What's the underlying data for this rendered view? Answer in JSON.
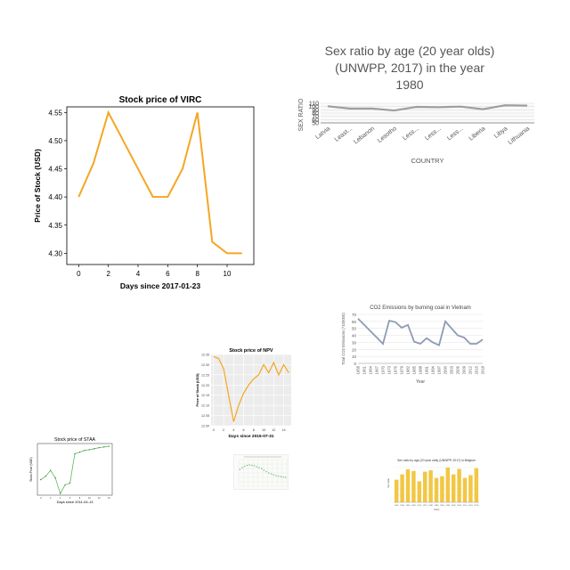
{
  "chart_data": [
    {
      "id": "c1",
      "type": "line",
      "title": "Stock price of VIRC",
      "xlabel": "Days since 2017-01-23",
      "ylabel": "Price of Stock (USD)",
      "x": [
        0,
        1,
        2,
        3,
        4,
        5,
        6,
        7,
        8,
        9,
        10,
        11
      ],
      "series": [
        {
          "values": [
            4.4,
            4.46,
            4.55,
            4.5,
            4.45,
            4.4,
            4.4,
            4.45,
            4.55,
            4.32,
            4.3,
            4.3
          ]
        }
      ],
      "xlim": [
        -0.8,
        11.8
      ],
      "ylim": [
        4.28,
        4.56
      ],
      "xticks": [
        0,
        2,
        4,
        6,
        8,
        10
      ],
      "yticks": [
        4.3,
        4.35,
        4.4,
        4.45,
        4.5,
        4.55
      ],
      "color": "#f5a623",
      "grid": false
    },
    {
      "id": "c2",
      "type": "line",
      "title_lines": [
        "Sex ratio by age (20 year olds)",
        "(UNWPP, 2017) in the year",
        "1980"
      ],
      "xlabel": "COUNTRY",
      "ylabel": "SEX RATIO",
      "categories": [
        "Latvia",
        "Least...",
        "Lebanon",
        "Lesotho",
        "Less...",
        "Less...",
        "Less...",
        "Liberia",
        "Libya",
        "Lithuania"
      ],
      "series": [
        {
          "values": [
            101,
            94,
            94,
            88,
            99,
            98,
            100,
            92,
            104,
            103
          ]
        }
      ],
      "ylim": [
        50,
        110
      ],
      "yticks": [
        "50",
        "60",
        "70",
        "80",
        "90",
        "100",
        "110"
      ],
      "color": "#9e9e9e",
      "grid": true
    },
    {
      "id": "c3",
      "type": "line",
      "title": "CO2 Emissions by burning coal in Vietnam",
      "xlabel": "Year",
      "ylabel": "Total CO2 Emissions (*100000)",
      "x": [
        1960,
        1963,
        1966,
        1969,
        1972,
        1975,
        1978,
        1981,
        1984,
        1987,
        1990,
        1993,
        1996,
        1999,
        2002,
        2005,
        2008,
        2011,
        2014,
        2017
      ],
      "series": [
        {
          "values": [
            64,
            55,
            46,
            37,
            28,
            61,
            59,
            51,
            55,
            31,
            28,
            36,
            30,
            26,
            60,
            50,
            40,
            37,
            28,
            28
          ]
        }
      ],
      "extra_last": 34,
      "ylim": [
        0,
        70
      ],
      "yticks": [
        0,
        10,
        20,
        30,
        40,
        50,
        60,
        70
      ],
      "xtick_labels": [
        "1958",
        "1961",
        "1964",
        "1967",
        "1970",
        "1973",
        "1976",
        "1979",
        "1982",
        "1985",
        "1988",
        "1991",
        "1994",
        "1997",
        "2000",
        "2003",
        "2006",
        "2009",
        "2012",
        "2015",
        "2018"
      ],
      "color": "#8e9bb5",
      "grid": true
    },
    {
      "id": "c4",
      "type": "line",
      "title": "Stock price of NPV",
      "xlabel": "Days since 2015-07-31",
      "ylabel": "Price of Stock (USD)",
      "x": [
        0,
        1,
        2,
        3,
        4,
        5,
        6,
        7,
        8,
        9,
        10,
        11,
        12,
        13,
        14,
        15
      ],
      "series": [
        {
          "values": [
            12.34,
            12.33,
            12.28,
            12.15,
            12.02,
            12.1,
            12.16,
            12.2,
            12.23,
            12.25,
            12.3,
            12.26,
            12.31,
            12.25,
            12.3,
            12.26
          ]
        }
      ],
      "ylim": [
        12.0,
        12.35
      ],
      "yticks": [
        "12.00",
        "12.05",
        "12.10",
        "12.15",
        "12.20",
        "12.25",
        "12.30",
        "12.35"
      ],
      "xticks": [
        0,
        2,
        4,
        6,
        8,
        10,
        12,
        14
      ],
      "color": "#f5a623",
      "grid": true
    },
    {
      "id": "c5",
      "type": "line",
      "title": "Stock price of STAA",
      "xlabel": "Days since 2011-04-13",
      "ylabel": "Stock Price (USD)",
      "x": [
        0,
        1,
        2,
        3,
        4,
        5,
        6,
        7,
        8,
        9,
        10,
        11,
        12,
        13,
        14
      ],
      "series": [
        {
          "values": [
            3.45,
            3.55,
            3.72,
            3.5,
            3.05,
            3.3,
            3.35,
            4.2,
            4.25,
            4.3,
            4.32,
            4.35,
            4.38,
            4.4,
            4.42
          ]
        }
      ],
      "ylim": [
        3.0,
        4.5
      ],
      "xticks": [
        0,
        2,
        4,
        6,
        8,
        10,
        12,
        14
      ],
      "color": "#5cb85c",
      "grid": false
    },
    {
      "id": "c6",
      "type": "scatter",
      "x": [
        1,
        2,
        3,
        4,
        5,
        6,
        7,
        8,
        9,
        10,
        11,
        12,
        13,
        14,
        15,
        16,
        17,
        18,
        19,
        20
      ],
      "series": [
        {
          "values": [
            38,
            42,
            45,
            47,
            48,
            47,
            46,
            44,
            42,
            40,
            36,
            33,
            30,
            28,
            26,
            24,
            23,
            22,
            21,
            20
          ]
        }
      ],
      "ylim": [
        0,
        60
      ],
      "color": "#7fbf7f",
      "grid": true
    },
    {
      "id": "c7",
      "type": "bar",
      "title": "Sex ratio by age (20 year olds) (UNWPP, 2017) in Belgium",
      "xlabel": "Years",
      "ylabel": "Sex Ratio",
      "categories": [
        "1950",
        "1955",
        "1960",
        "1965",
        "1970",
        "1975",
        "1980",
        "1985",
        "1990",
        "1995",
        "2000",
        "2005",
        "2010",
        "2015",
        "2020"
      ],
      "values": [
        65,
        80,
        95,
        90,
        60,
        88,
        92,
        70,
        75,
        100,
        80,
        96,
        70,
        78,
        98
      ],
      "ylim": [
        0,
        110
      ],
      "color": "#f2c744",
      "grid": true
    }
  ]
}
